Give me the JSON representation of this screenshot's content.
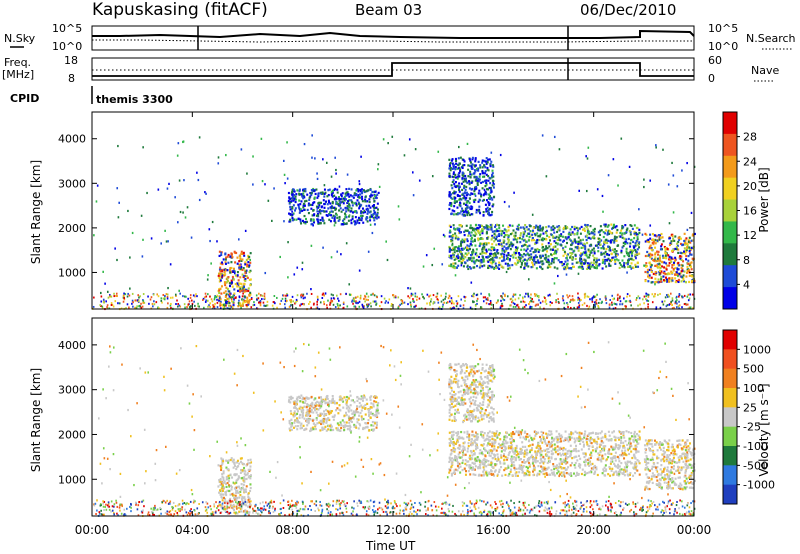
{
  "header": {
    "station": "Kapuskasing (fitACF)",
    "beam": "Beam 03",
    "date": "06/Dec/2010"
  },
  "top_panels": {
    "nsky_label": "N.Sky",
    "nsky_ticks": [
      "10^5",
      "10^0"
    ],
    "nsearch_label": "N.Search",
    "nsearch_ticks": [
      "10^5",
      "10^0"
    ],
    "freq_label": "Freq.",
    "freq_unit": "[MHz]",
    "freq_ticks": [
      "18",
      "8"
    ],
    "nave_label": "Nave",
    "nave_ticks": [
      "60",
      "0"
    ],
    "cpid_label": "CPID",
    "cpid_name": "themis 3300"
  },
  "chart_data": [
    {
      "type": "heatmap",
      "panel": "power",
      "ylabel": "Slant Range [km]",
      "colorbar_label": "Power [dB]",
      "colorbar_ticks": [
        "28",
        "24",
        "20",
        "16",
        "12",
        "8",
        "4"
      ],
      "colors": [
        "#0000e6",
        "#1e4bd7",
        "#1f7a3c",
        "#33b84a",
        "#a8d23a",
        "#f0d020",
        "#f39a1a",
        "#ee5520",
        "#e00000"
      ],
      "y_ticks": [
        "4000",
        "3000",
        "2000",
        "1000"
      ],
      "ylim": [
        180,
        4600
      ],
      "xlim_hours": [
        0,
        24
      ],
      "regions": [
        {
          "t0": 5.0,
          "t1": 6.3,
          "r0": 250,
          "r1": 1500,
          "level": "high"
        },
        {
          "t0": 7.8,
          "t1": 11.4,
          "r0": 2100,
          "r1": 2900,
          "level": "low"
        },
        {
          "t0": 14.2,
          "t1": 21.8,
          "r0": 1100,
          "r1": 2100,
          "level": "mid"
        },
        {
          "t0": 14.2,
          "t1": 16.0,
          "r0": 2300,
          "r1": 3600,
          "level": "low"
        },
        {
          "t0": 22.0,
          "t1": 24.0,
          "r0": 800,
          "r1": 1900,
          "level": "high"
        }
      ]
    },
    {
      "type": "heatmap",
      "panel": "velocity",
      "ylabel": "Slant Range [km]",
      "colorbar_label": "Velocity [m s⁻¹]",
      "colorbar_ticks": [
        "1000",
        "500",
        "100",
        "25",
        "-25",
        "-100",
        "-500",
        "-1000"
      ],
      "colors": [
        "#1f3fbf",
        "#2f7ae0",
        "#1f7a3c",
        "#7ad04a",
        "#c8c8c8",
        "#f0c020",
        "#f08020",
        "#f05020",
        "#e00000"
      ],
      "y_ticks": [
        "4000",
        "3000",
        "2000",
        "1000"
      ],
      "ylim": [
        180,
        4600
      ],
      "xlim_hours": [
        0,
        24
      ],
      "x_ticks": [
        "00:00",
        "04:00",
        "08:00",
        "12:00",
        "16:00",
        "20:00",
        "00:00"
      ],
      "xlabel": "Time UT"
    }
  ]
}
